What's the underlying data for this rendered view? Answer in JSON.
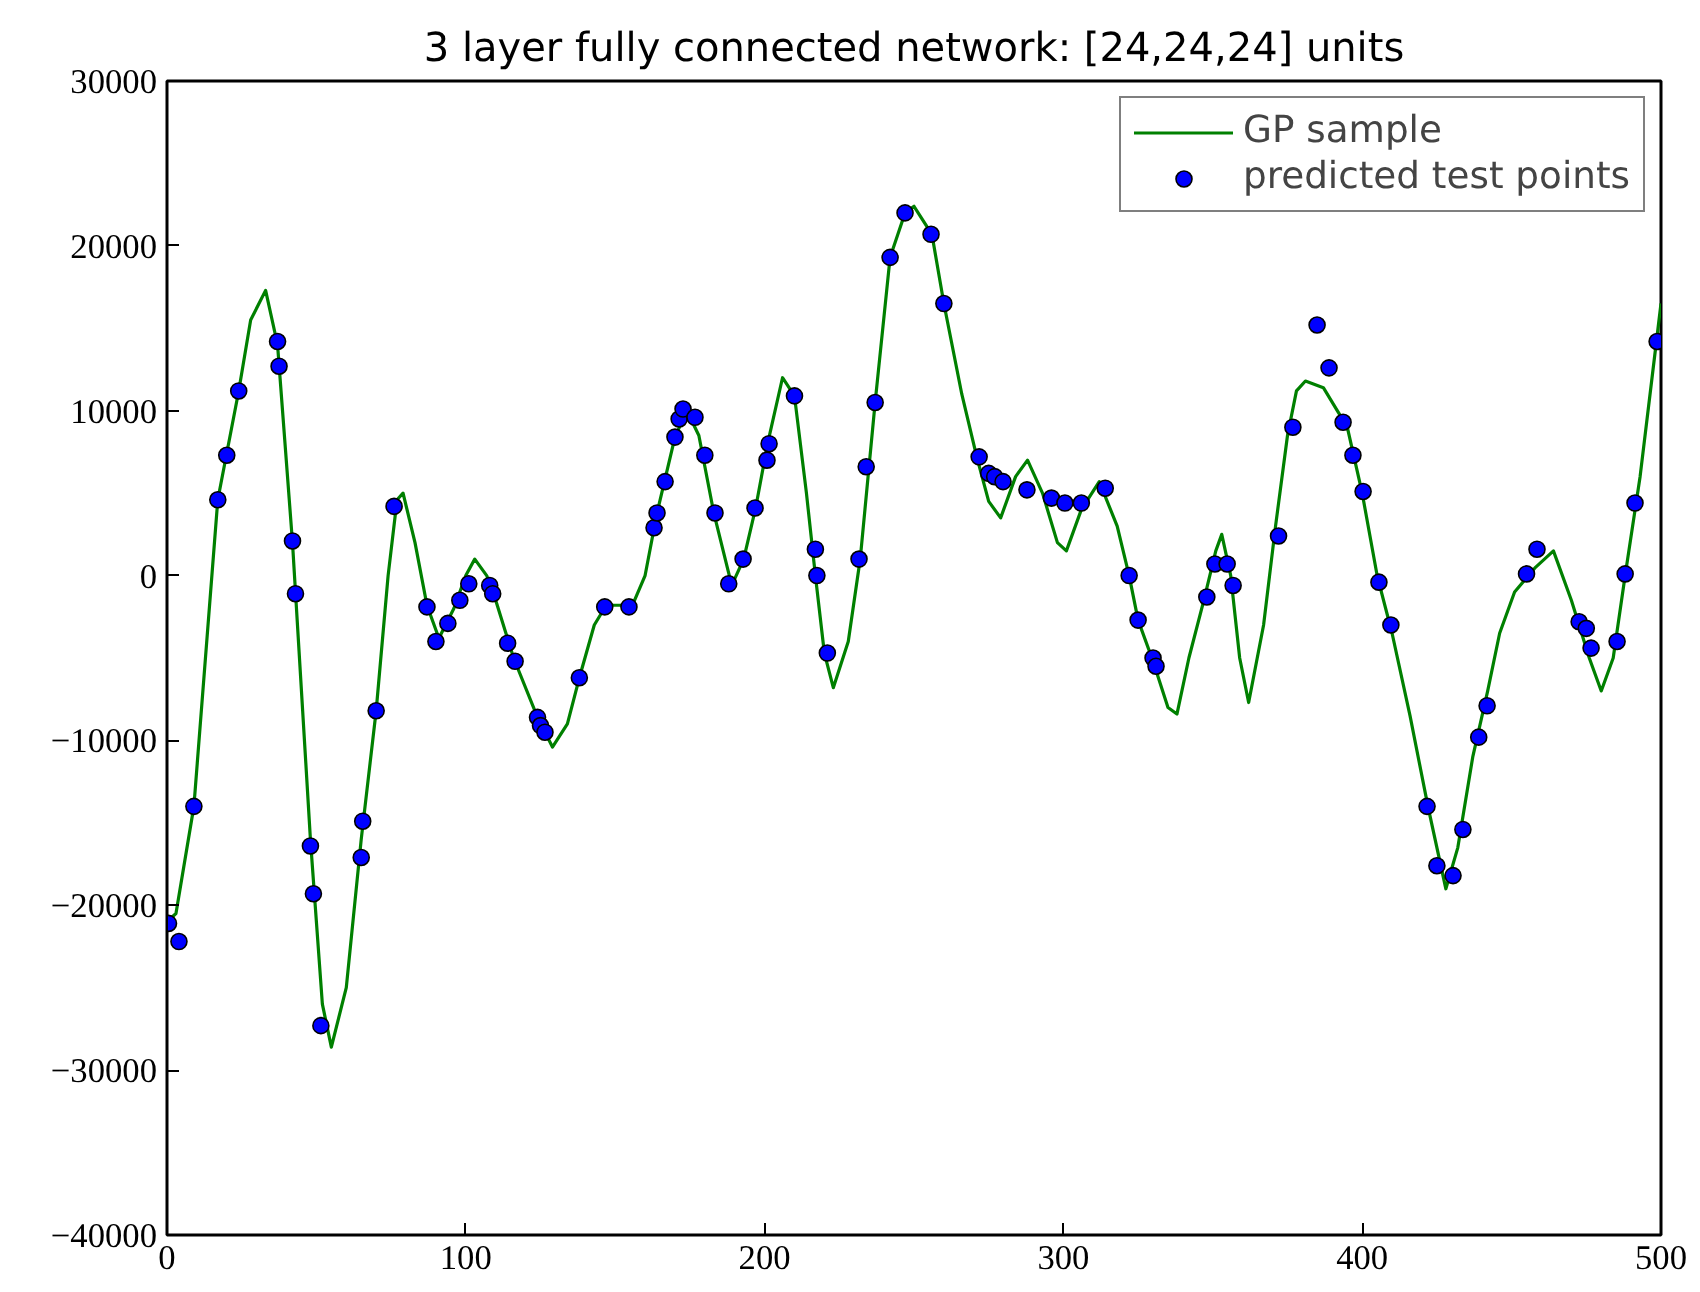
{
  "chart_data": {
    "type": "line",
    "title": "3 layer fully connected network: [24,24,24] units",
    "xlim": [
      0,
      500
    ],
    "ylim": [
      -40000,
      30000
    ],
    "xticks": [
      0,
      100,
      200,
      300,
      400,
      500
    ],
    "yticks": [
      {
        "value": -40000,
        "label": "−40000"
      },
      {
        "value": -30000,
        "label": "−30000"
      },
      {
        "value": -20000,
        "label": "−20000"
      },
      {
        "value": -10000,
        "label": "−10000"
      },
      0,
      10000,
      20000,
      30000
    ],
    "grid": false,
    "legend": "top right",
    "series": [
      {
        "name": "GP sample",
        "color": "#008000",
        "line_style": "solid",
        "x": [
          0,
          3,
          9,
          17,
          24,
          28,
          33,
          37,
          42,
          48,
          52,
          55,
          60,
          65,
          70,
          74,
          77,
          79,
          83,
          87,
          91,
          96,
          100,
          103,
          107,
          110,
          116,
          124,
          129,
          134,
          138,
          143,
          147,
          152,
          156,
          160,
          164,
          170,
          174,
          178,
          183,
          189,
          193,
          197,
          201,
          206,
          210,
          214,
          217,
          220,
          223,
          228,
          232,
          237,
          242,
          247,
          250,
          256,
          260,
          266,
          271,
          275,
          279,
          284,
          288,
          293,
          298,
          301,
          306,
          312,
          318,
          322,
          325,
          330,
          335,
          338,
          342,
          347,
          351,
          353,
          356,
          359,
          362,
          367,
          371,
          375,
          378,
          381,
          387,
          395,
          400,
          405,
          410,
          416,
          422,
          428,
          432,
          437,
          442,
          446,
          451,
          458,
          464,
          470,
          476,
          480,
          484,
          488,
          493,
          500
        ],
        "values": [
          -21000,
          -20500,
          -14000,
          4600,
          11200,
          15500,
          17300,
          14000,
          2000,
          -16000,
          -26000,
          -28600,
          -25000,
          -16000,
          -8200,
          0,
          4600,
          5000,
          2000,
          -1800,
          -3800,
          -2000,
          0,
          1000,
          0,
          -1500,
          -5000,
          -8600,
          -10400,
          -9000,
          -6200,
          -3000,
          -1800,
          -1800,
          -1700,
          0,
          3800,
          8400,
          10000,
          8500,
          3800,
          -600,
          1000,
          4100,
          8000,
          12000,
          10900,
          5000,
          0,
          -4700,
          -6800,
          -4000,
          1000,
          10500,
          19300,
          22000,
          22400,
          20700,
          16500,
          11000,
          7200,
          4500,
          3500,
          6000,
          7000,
          5000,
          2000,
          1500,
          4000,
          5700,
          3000,
          0,
          -2700,
          -5200,
          -8000,
          -8400,
          -5000,
          -1500,
          1500,
          2500,
          0,
          -5000,
          -7700,
          -3000,
          3000,
          8500,
          11200,
          11800,
          11400,
          9000,
          5000,
          0,
          -3500,
          -8500,
          -14000,
          -19000,
          -16500,
          -11000,
          -7000,
          -3500,
          -1000,
          500,
          1500,
          -1500,
          -5000,
          -7000,
          -5000,
          0,
          6000,
          16500
        ]
      },
      {
        "name": "predicted test points",
        "type": "scatter",
        "color": "#0000ff",
        "marker": "circle",
        "x": [
          0.5,
          4,
          9,
          17,
          20,
          24,
          37,
          37.5,
          42,
          43,
          48,
          49,
          51.5,
          65,
          65.5,
          70,
          76,
          87,
          90,
          94,
          98,
          101,
          108,
          109,
          114,
          116.5,
          124,
          125,
          126.5,
          138,
          146.5,
          154.6,
          163,
          164,
          166.7,
          170,
          171.4,
          172.7,
          176.7,
          180,
          183.4,
          188,
          192.8,
          196.8,
          200.8,
          201.5,
          210,
          217,
          217.5,
          221,
          231.6,
          234,
          237,
          242,
          247,
          255.7,
          260,
          271.8,
          275,
          277,
          279.8,
          287.8,
          296,
          300.5,
          306,
          314,
          322,
          325,
          330,
          331,
          348,
          350.7,
          354.8,
          356.8,
          372,
          376.8,
          384.9,
          388.9,
          393.6,
          396.9,
          400.3,
          405.6,
          409.6,
          421.7,
          425,
          430.4,
          433.7,
          439,
          441.8,
          455,
          458.5,
          472.6,
          475,
          476.6,
          485.3,
          488,
          491.3,
          498.7
        ],
        "values": [
          -21100,
          -22200,
          -14000,
          4600,
          7300,
          11200,
          14200,
          12700,
          2100,
          -1100,
          -16400,
          -19300,
          -27300,
          -17100,
          -14900,
          -8200,
          4200,
          -1900,
          -4000,
          -2900,
          -1500,
          -500,
          -600,
          -1100,
          -4100,
          -5200,
          -8600,
          -9100,
          -9500,
          -6200,
          -1900,
          -1900,
          2900,
          3800,
          5700,
          8400,
          9500,
          10100,
          9600,
          7300,
          3800,
          -500,
          1000,
          4100,
          7000,
          8000,
          10900,
          1600,
          0,
          -4700,
          1000,
          6600,
          10500,
          19300,
          22000,
          20700,
          16500,
          7200,
          6200,
          6000,
          5700,
          5200,
          4700,
          4400,
          4400,
          5300,
          0,
          -2700,
          -5000,
          -5500,
          -1300,
          700,
          700,
          -600,
          2400,
          9000,
          15200,
          12600,
          9300,
          7300,
          5100,
          -400,
          -3000,
          -14000,
          -17600,
          -18200,
          -15400,
          -9800,
          -7900,
          100,
          1600,
          -2800,
          -3200,
          -4400,
          -4000,
          100,
          4400,
          14200
        ]
      }
    ]
  }
}
